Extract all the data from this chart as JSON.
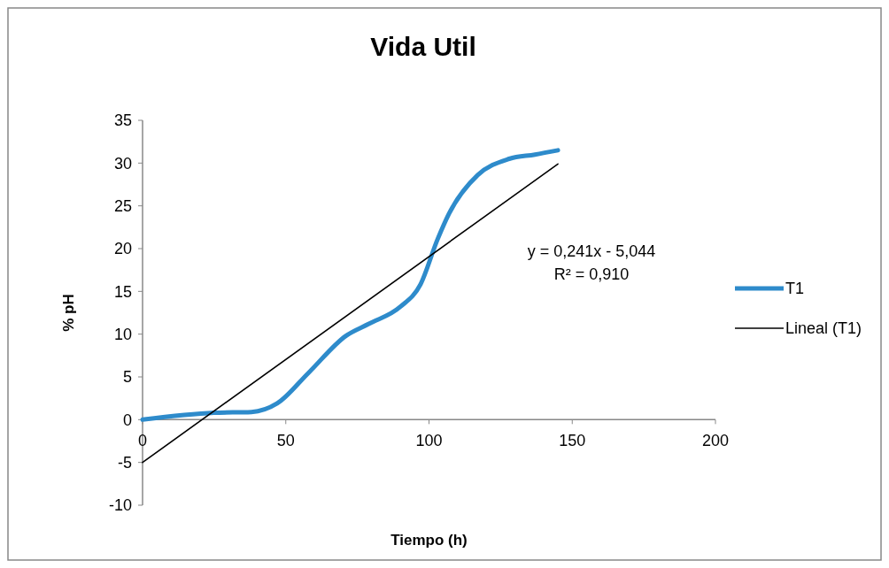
{
  "chart_data": {
    "type": "line",
    "title": "Vida Util",
    "xlabel": "Tiempo (h)",
    "ylabel": "% pH",
    "xlim": [
      0,
      200
    ],
    "xticks": [
      0,
      50,
      100,
      150,
      200
    ],
    "ylim": [
      -10,
      35
    ],
    "yticks": [
      -10,
      -5,
      0,
      5,
      10,
      15,
      20,
      25,
      30,
      35
    ],
    "grid": false,
    "legend": "right",
    "marker": "none",
    "annotations": [
      "y = 0,241x - 5,044",
      "R² = 0,910"
    ],
    "series": [
      {
        "name": "T1",
        "color": "#2e8bcb",
        "x": [
          0,
          25,
          38,
          47,
          58,
          71,
          79,
          90,
          97,
          103,
          107,
          117,
          128,
          137,
          145
        ],
        "values": [
          0,
          0.8,
          0.9,
          1.9,
          5.5,
          9.8,
          11.2,
          13.2,
          15.8,
          21.1,
          24.1,
          28.6,
          30.5,
          31,
          31.5
        ]
      },
      {
        "name": "Lineal (T1)",
        "color": "#000000",
        "type": "line",
        "x": [
          0,
          145
        ],
        "values": [
          -5,
          29.9
        ]
      }
    ]
  }
}
